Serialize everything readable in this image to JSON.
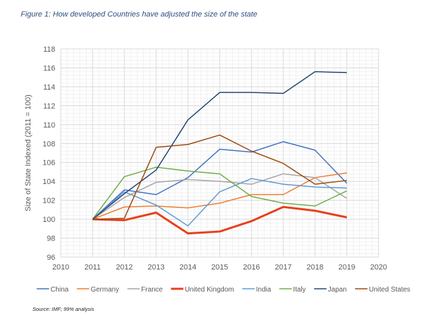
{
  "chart_data": {
    "type": "line",
    "title": "Figure 1: How developed  Countries have adjusted the size of the state",
    "source": "Source: IMF; 99% analysis",
    "xlabel": "",
    "ylabel": "Size of State Indexed (2011 = 100)",
    "xlim": [
      2010,
      2020
    ],
    "ylim": [
      96,
      118
    ],
    "xticks": [
      "2010",
      "2011",
      "2012",
      "2013",
      "2014",
      "2015",
      "2016",
      "2017",
      "2018",
      "2019",
      "2020"
    ],
    "yticks": [
      "96",
      "98",
      "100",
      "102",
      "104",
      "106",
      "108",
      "110",
      "112",
      "114",
      "116",
      "118"
    ],
    "grid": true,
    "legend": "bottom",
    "x": [
      2011,
      2012,
      2013,
      2014,
      2015,
      2016,
      2017,
      2018,
      2019
    ],
    "series": [
      {
        "name": "China",
        "color": "#4472c4",
        "values": [
          100,
          103.1,
          102.6,
          104.4,
          107.4,
          107.1,
          108.2,
          107.3,
          103.8
        ]
      },
      {
        "name": "Germany",
        "color": "#ed7d31",
        "values": [
          100,
          101.3,
          101.4,
          101.2,
          101.7,
          102.6,
          102.6,
          104.4,
          104.9
        ]
      },
      {
        "name": "France",
        "color": "#a5a5a5",
        "values": [
          100,
          102.3,
          103.9,
          104.2,
          104.0,
          103.7,
          104.8,
          104.4,
          102.2
        ]
      },
      {
        "name": "United Kingdom",
        "color": "#e8401c",
        "values": [
          100,
          99.9,
          100.7,
          98.5,
          98.7,
          99.8,
          101.3,
          100.9,
          100.2
        ]
      },
      {
        "name": "India",
        "color": "#5b9bd5",
        "values": [
          100,
          102.9,
          101.5,
          99.3,
          102.9,
          104.3,
          103.7,
          103.4,
          103.3
        ]
      },
      {
        "name": "Italy",
        "color": "#70ad47",
        "values": [
          100,
          104.5,
          105.5,
          105.1,
          104.8,
          102.4,
          101.7,
          101.4,
          103.0
        ]
      },
      {
        "name": "Japan",
        "color": "#264478",
        "values": [
          100,
          102.7,
          105.2,
          110.5,
          113.4,
          113.4,
          113.3,
          115.6,
          115.5
        ]
      },
      {
        "name": "United States",
        "color": "#9e480e",
        "values": [
          100,
          100.1,
          107.6,
          107.9,
          108.9,
          107.2,
          105.9,
          103.7,
          104.1
        ]
      }
    ]
  }
}
